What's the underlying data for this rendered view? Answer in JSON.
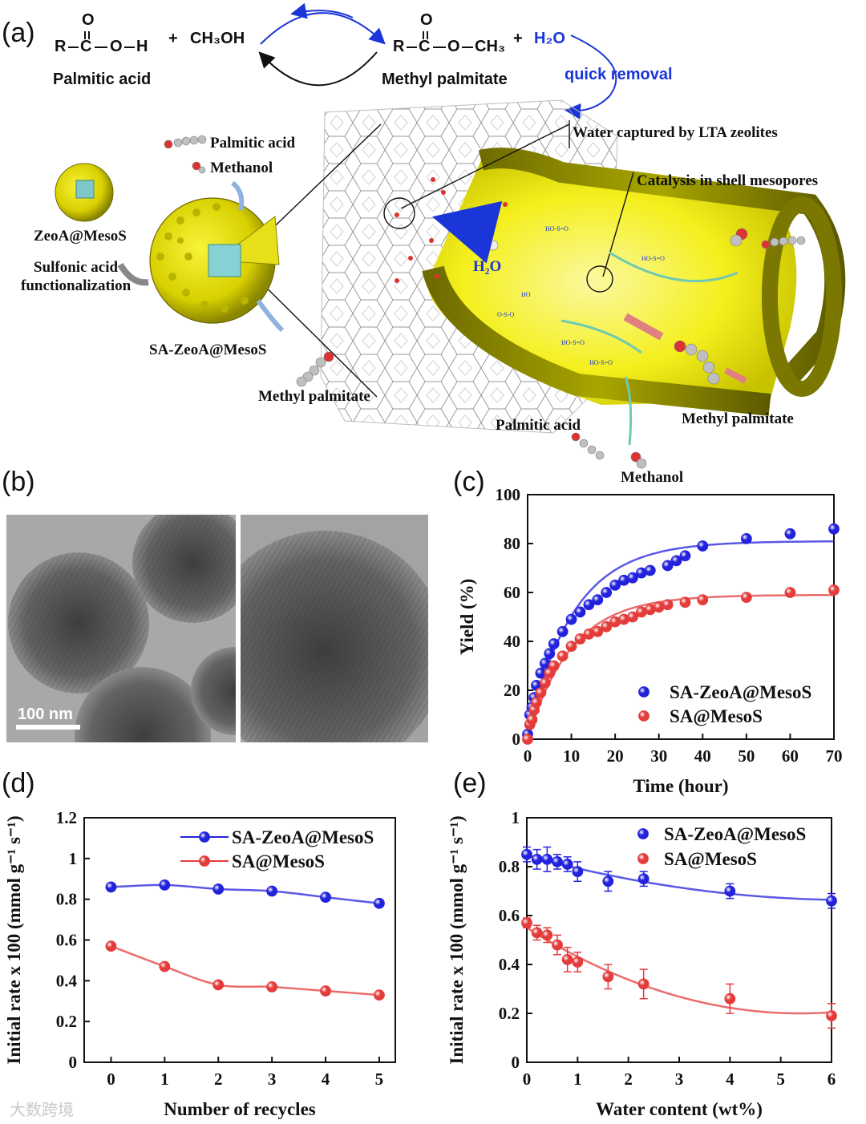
{
  "panels": {
    "a": "(a)",
    "b": "(b)",
    "c": "(c)",
    "d": "(d)",
    "e": "(e)"
  },
  "scheme": {
    "acid_formula_R": "R",
    "acid_formula_C": "C",
    "acid_formula_O": "O",
    "acid_formula_H": "H",
    "plus1": "+",
    "methanol_formula": "CH₃OH",
    "ester_formula_tail": "CH₃",
    "plus2": "+",
    "water": "H₂O",
    "quick_removal": "quick removal",
    "palmitic_acid_label": "Palmitic acid",
    "methyl_palmitate_label": "Methyl palmitate",
    "water_captured": "Water captured by LTA zeolites",
    "catalysis": "Catalysis in shell mesopores",
    "left_palmitic": "Palmitic acid",
    "left_methanol": "Methanol",
    "zeoa_mesos": "ZeoA@MesoS",
    "sulfonic_1": "Sulfonic acid",
    "sulfonic_2": "functionalization",
    "sa_zeoa": "SA-ZeoA@MesoS",
    "left_methyl_palmitate": "Methyl palmitate",
    "h2o_inner": "H₂O",
    "bottom_palmitic": "Palmitic acid",
    "bottom_methanol": "Methanol",
    "right_methyl_palmitate": "Methyl palmitate",
    "colors": {
      "shell": "#8c8a00",
      "inner": "#f4f216",
      "accent_blue": "#1a35d8"
    }
  },
  "tem": {
    "scale_bar": "100 nm"
  },
  "watermark": "大数跨境",
  "chart_data": [
    {
      "id": "c",
      "type": "scatter",
      "xlabel": "Time (hour)",
      "ylabel": "Yield (%)",
      "xlim": [
        0,
        70
      ],
      "ylim": [
        0,
        100
      ],
      "xticks": [
        0,
        10,
        20,
        30,
        40,
        50,
        60,
        70
      ],
      "yticks": [
        0,
        20,
        40,
        60,
        80,
        100
      ],
      "legend": "bottom-right",
      "series": [
        {
          "name": "SA-ZeoA@MesoS",
          "color": "#2222dd",
          "x": [
            0,
            0.5,
            1,
            1.5,
            2,
            3,
            4,
            5,
            6,
            8,
            10,
            12,
            14,
            16,
            18,
            20,
            22,
            24,
            26,
            28,
            32,
            34,
            36,
            40,
            50,
            60,
            70
          ],
          "y": [
            2,
            10,
            13,
            17,
            22,
            27,
            31,
            35,
            39,
            44,
            49,
            52,
            55,
            57,
            60,
            63,
            65,
            66,
            68,
            69,
            71,
            73,
            75,
            79,
            82,
            84,
            86
          ],
          "fit_plateau": 81,
          "fit_rate": 0.095
        },
        {
          "name": "SA@MesoS",
          "color": "#e43b3b",
          "x": [
            0,
            0.5,
            1,
            1.5,
            2,
            3,
            4,
            5,
            6,
            8,
            10,
            12,
            14,
            16,
            18,
            20,
            22,
            24,
            26,
            28,
            30,
            32,
            36,
            40,
            50,
            60,
            70
          ],
          "y": [
            0,
            6,
            8,
            12,
            15,
            19,
            23,
            27,
            30,
            34,
            38,
            41,
            43,
            44,
            46,
            48,
            49,
            50,
            52,
            53,
            54,
            55,
            56,
            57,
            58,
            60,
            61
          ],
          "fit_plateau": 59,
          "fit_rate": 0.1
        }
      ]
    },
    {
      "id": "d",
      "type": "line",
      "xlabel": "Number of recycles",
      "ylabel": "Initial rate x 100 (mmol g⁻¹ s⁻¹)",
      "xlim": [
        -0.5,
        5.3
      ],
      "ylim": [
        0,
        1.2
      ],
      "xticks": [
        0,
        1,
        2,
        3,
        4,
        5
      ],
      "yticks": [
        0,
        0.2,
        0.4,
        0.6,
        0.8,
        1.0,
        1.2
      ],
      "ytick_labels": [
        "0",
        "0.2",
        "0.4",
        "0.6",
        "0.8",
        "1",
        "1.2"
      ],
      "legend": "top-right",
      "series": [
        {
          "name": "SA-ZeoA@MesoS",
          "color": "#2222dd",
          "x": [
            0,
            1,
            2,
            3,
            4,
            5
          ],
          "y": [
            0.86,
            0.87,
            0.85,
            0.84,
            0.81,
            0.78
          ]
        },
        {
          "name": "SA@MesoS",
          "color": "#e43b3b",
          "x": [
            0,
            1,
            2,
            3,
            4,
            5
          ],
          "y": [
            0.57,
            0.47,
            0.38,
            0.37,
            0.35,
            0.33
          ]
        }
      ]
    },
    {
      "id": "e",
      "type": "scatter",
      "xlabel": "Water content (wt%)",
      "ylabel": "Initial rate x 100 (mmol g⁻¹ s⁻¹)",
      "xlim": [
        0,
        6
      ],
      "ylim": [
        0,
        1
      ],
      "xticks": [
        0,
        1,
        2,
        3,
        4,
        5,
        6
      ],
      "yticks": [
        0,
        0.2,
        0.4,
        0.6,
        0.8,
        1.0
      ],
      "ytick_labels": [
        "0",
        "0.2",
        "0.4",
        "0.6",
        "0.8",
        "1"
      ],
      "legend": "top-right",
      "series": [
        {
          "name": "SA-ZeoA@MesoS",
          "color": "#2222dd",
          "x": [
            0,
            0.2,
            0.4,
            0.6,
            0.8,
            1.0,
            1.6,
            2.3,
            4.0,
            6.0
          ],
          "y": [
            0.85,
            0.83,
            0.83,
            0.82,
            0.81,
            0.78,
            0.74,
            0.75,
            0.7,
            0.66
          ],
          "err": [
            0.03,
            0.04,
            0.05,
            0.03,
            0.03,
            0.04,
            0.04,
            0.03,
            0.03,
            0.03
          ]
        },
        {
          "name": "SA@MesoS",
          "color": "#e43b3b",
          "x": [
            0,
            0.2,
            0.4,
            0.6,
            0.8,
            1.0,
            1.6,
            2.3,
            4.0,
            6.0
          ],
          "y": [
            0.57,
            0.53,
            0.52,
            0.48,
            0.42,
            0.41,
            0.35,
            0.32,
            0.26,
            0.19
          ],
          "err": [
            0.02,
            0.03,
            0.03,
            0.04,
            0.05,
            0.04,
            0.05,
            0.06,
            0.06,
            0.05
          ]
        }
      ]
    }
  ]
}
